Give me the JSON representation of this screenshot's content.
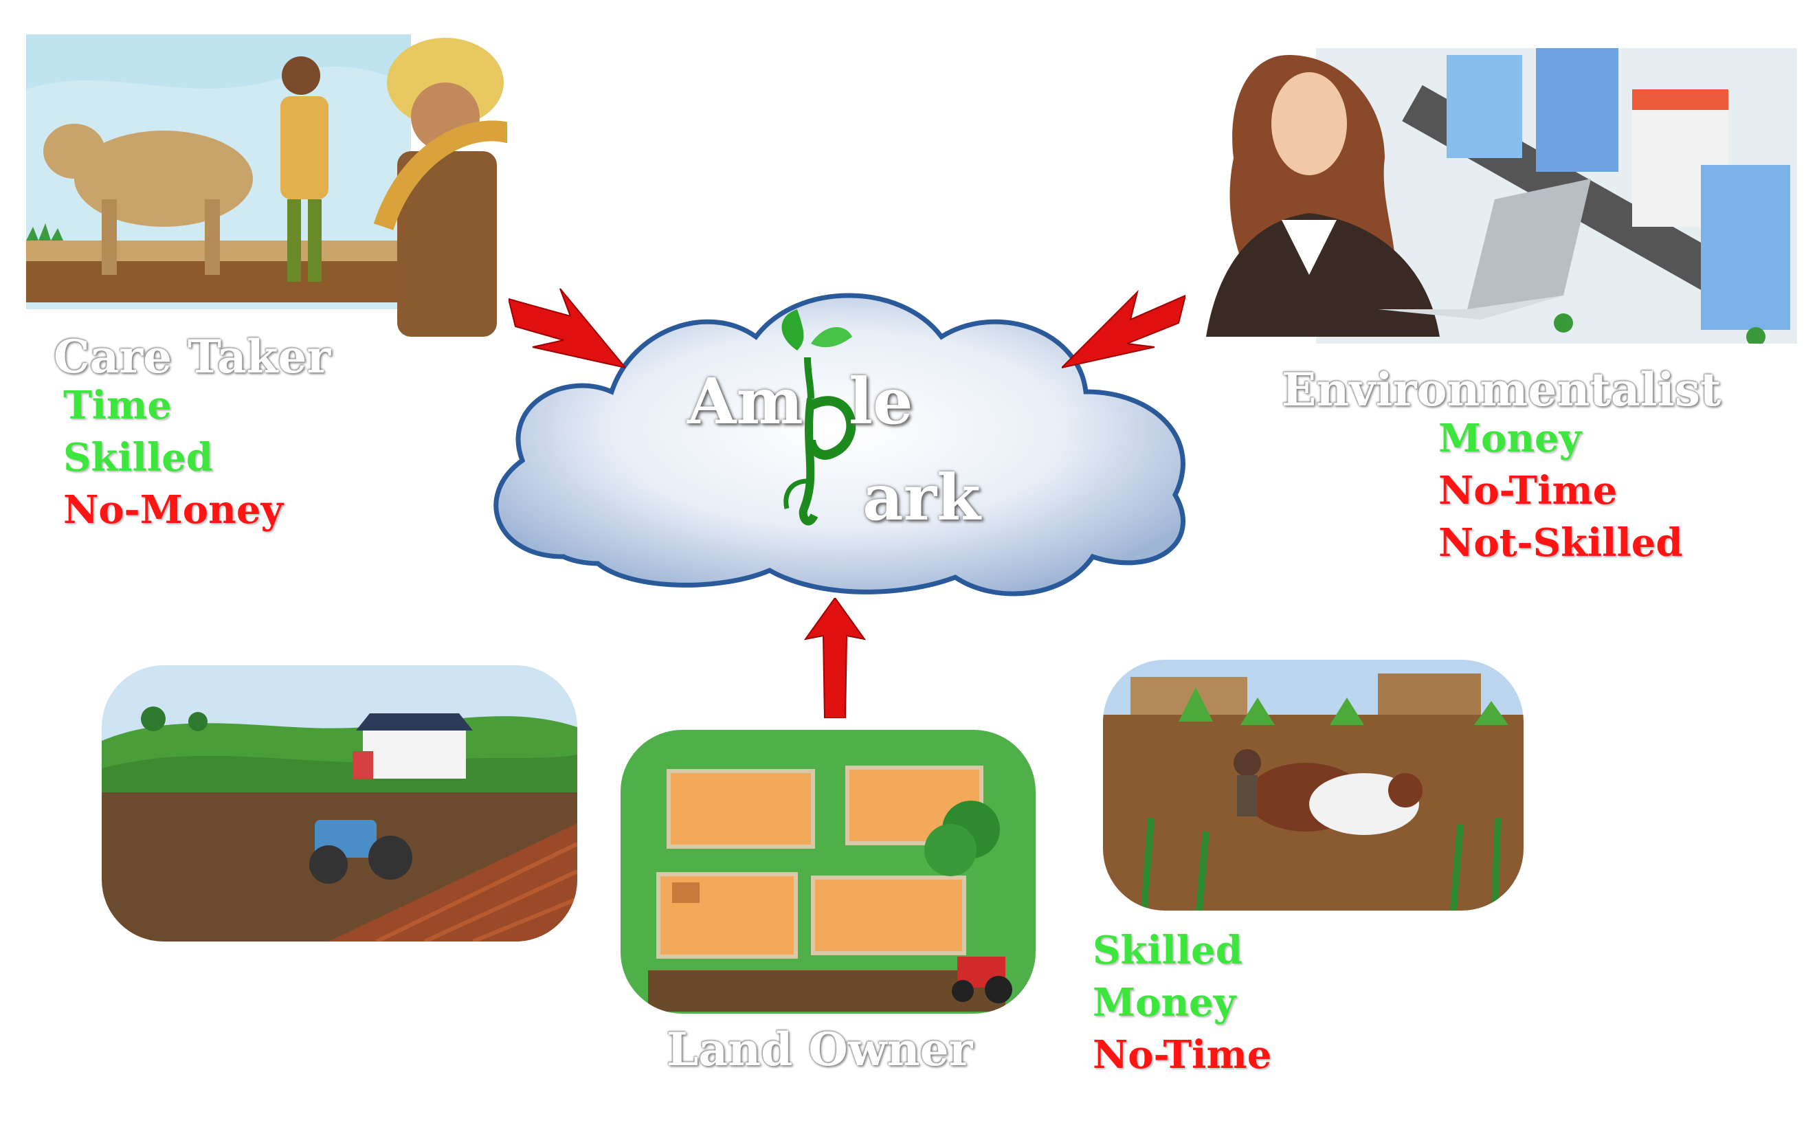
{
  "center": {
    "logo_part1": "Am",
    "logo_part2": "le",
    "logo_part3": "ark"
  },
  "caretaker": {
    "title": "Care Taker",
    "attributes": [
      {
        "label": "Time",
        "status": "good"
      },
      {
        "label": "Skilled",
        "status": "good"
      },
      {
        "label": "No-Money",
        "status": "bad"
      }
    ]
  },
  "environmentalist": {
    "title": "Environmentalist",
    "attributes": [
      {
        "label": "Money",
        "status": "good"
      },
      {
        "label": "No-Time",
        "status": "bad"
      },
      {
        "label": "Not-Skilled",
        "status": "bad"
      }
    ]
  },
  "landowner": {
    "title": "Land Owner"
  },
  "bottom_right": {
    "attributes": [
      {
        "label": "Skilled",
        "status": "good"
      },
      {
        "label": "Money",
        "status": "good"
      },
      {
        "label": "No-Time",
        "status": "bad"
      }
    ]
  },
  "colors": {
    "good": "#3ce63c",
    "bad": "#ff1414",
    "arrow": "#e01010",
    "cloud_edge": "#2a5a9a"
  }
}
